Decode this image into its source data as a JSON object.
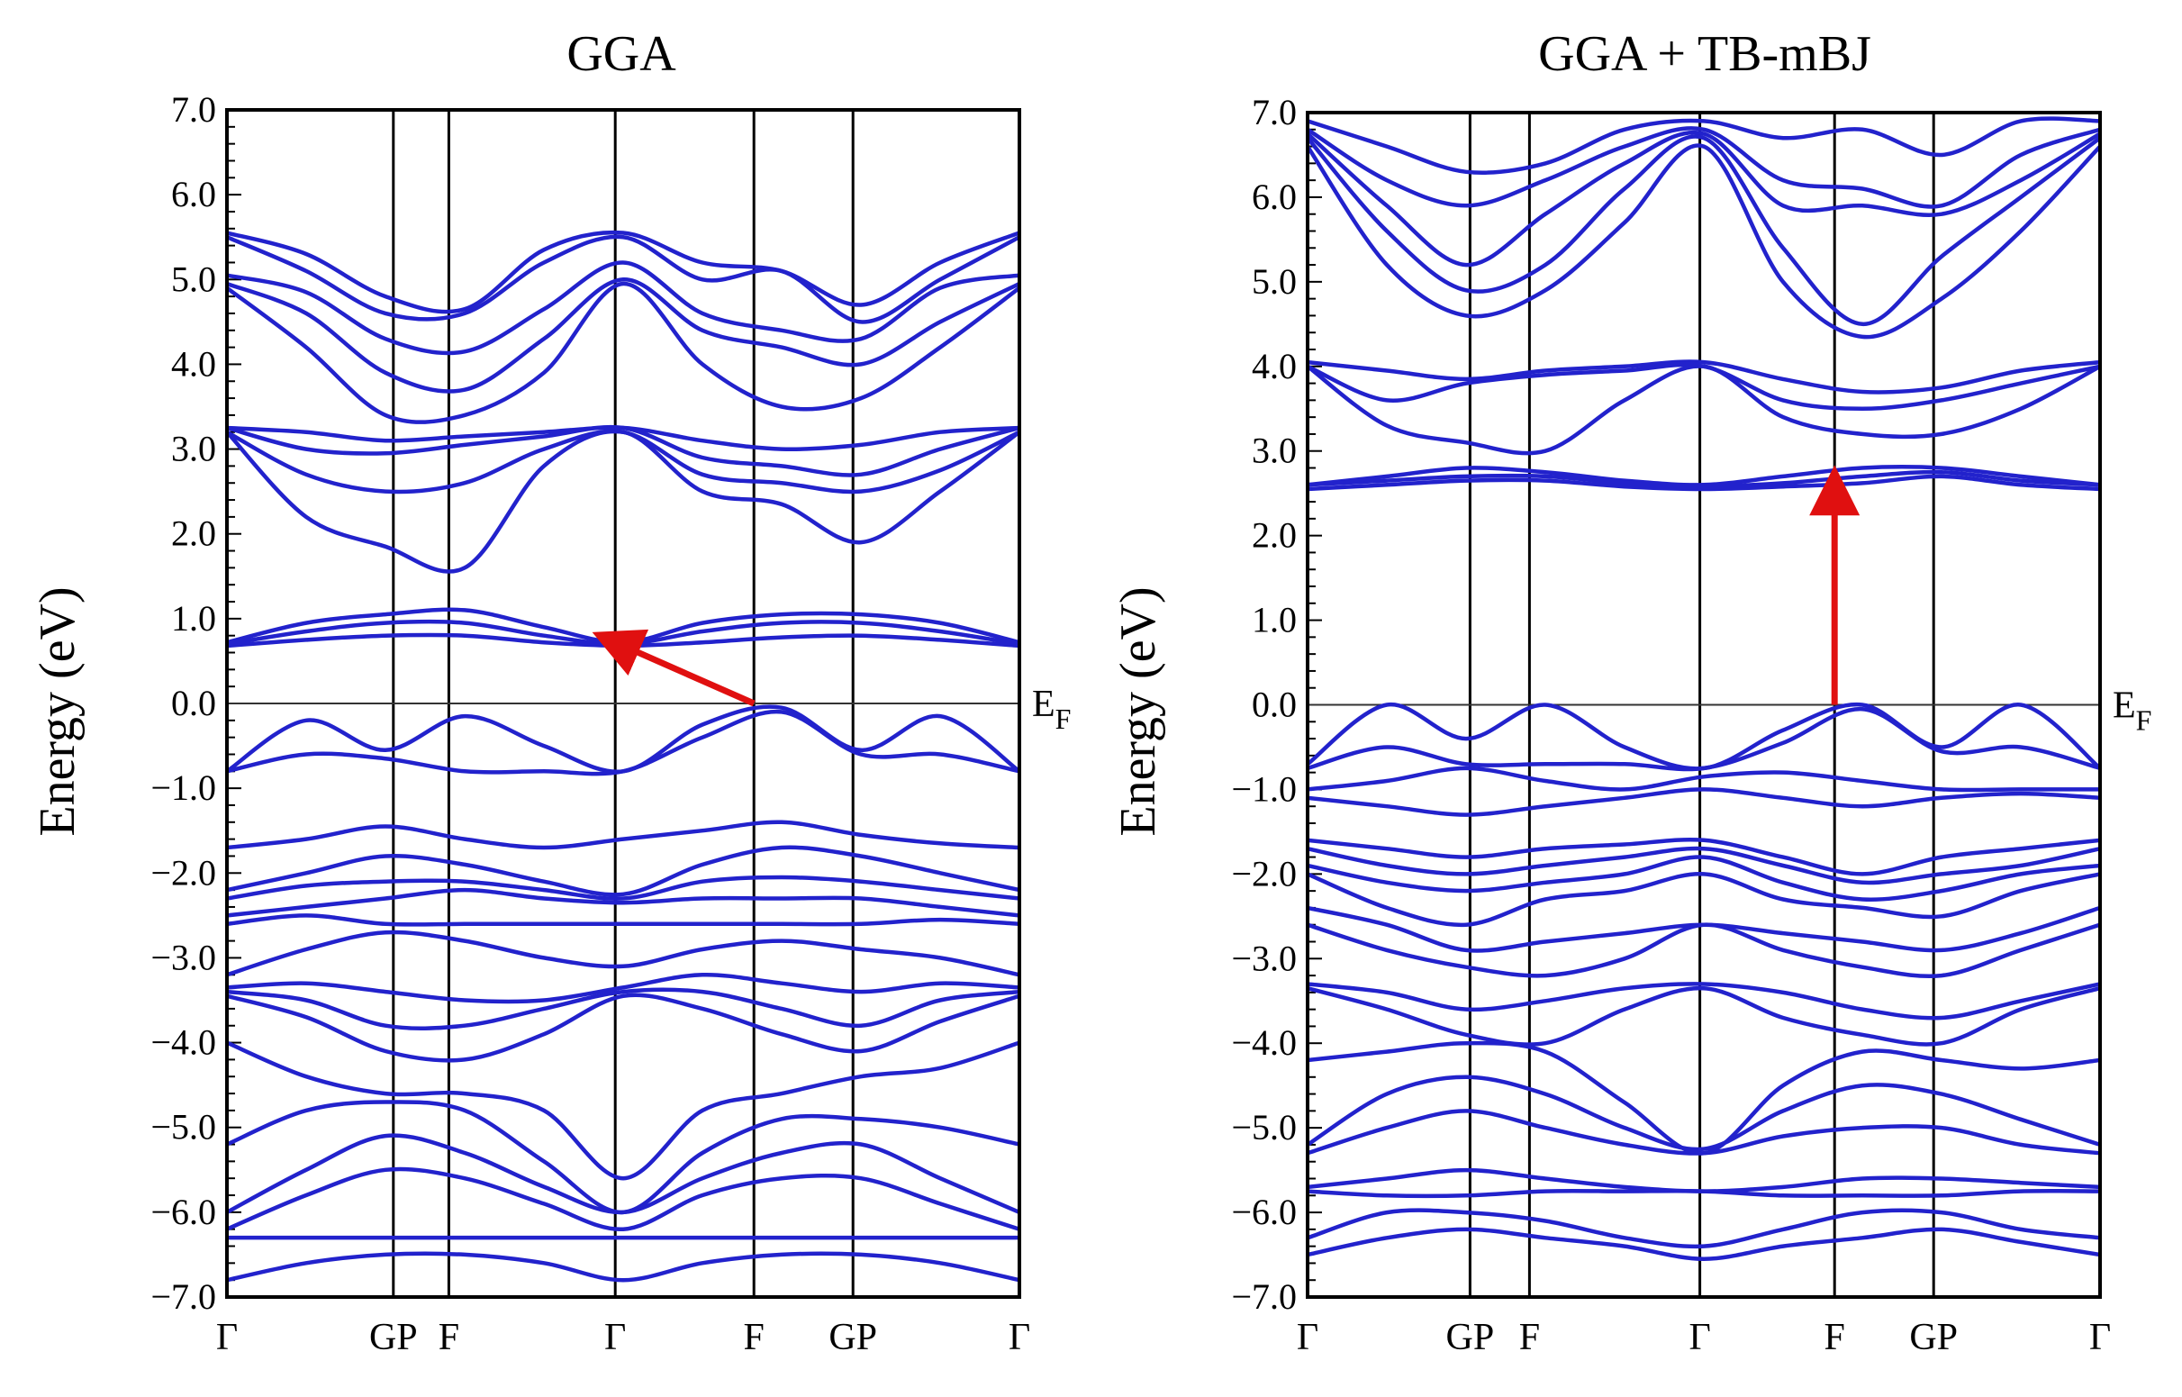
{
  "chart_data": [
    {
      "type": "line",
      "title": "GGA",
      "ylabel": "Energy (eV)",
      "xlabel": "",
      "ylim": [
        -7.0,
        7.0
      ],
      "ytick_labels": [
        "7.0",
        "6.0",
        "5.0",
        "4.0",
        "3.0",
        "2.0",
        "1.0",
        "0.0",
        "−1.0",
        "−2.0",
        "−3.0",
        "−4.0",
        "−5.0",
        "−6.0",
        "−7.0"
      ],
      "ytick_values": [
        7,
        6,
        5,
        4,
        3,
        2,
        1,
        0,
        -1,
        -2,
        -3,
        -4,
        -5,
        -6,
        -7
      ],
      "kpath": [
        {
          "label": "Γ",
          "pos": 0.0
        },
        {
          "label": "GP",
          "pos": 0.21
        },
        {
          "label": "F",
          "pos": 0.28
        },
        {
          "label": "Γ",
          "pos": 0.49
        },
        {
          "label": "F",
          "pos": 0.665
        },
        {
          "label": "GP",
          "pos": 0.79
        },
        {
          "label": "Γ",
          "pos": 1.0
        }
      ],
      "fermi_label_main": "E",
      "fermi_label_sub": "F",
      "fermi_level": 0.0,
      "line_color": "#2222cc",
      "arrow_color": "#e01010",
      "arrow": {
        "from": [
          0.665,
          0.0
        ],
        "to": [
          0.49,
          0.72
        ]
      },
      "series": [
        {
          "name": "band-1",
          "values": [
            5.55,
            5.3,
            4.8,
            4.65,
            5.35,
            5.55,
            5.2,
            5.1,
            4.7,
            5.2,
            5.55
          ]
        },
        {
          "name": "band-2",
          "values": [
            5.5,
            5.1,
            4.6,
            4.6,
            5.2,
            5.5,
            5.0,
            5.1,
            4.5,
            5.0,
            5.5
          ]
        },
        {
          "name": "band-3",
          "values": [
            5.05,
            4.85,
            4.3,
            4.15,
            4.65,
            5.2,
            4.6,
            4.4,
            4.3,
            4.9,
            5.05
          ]
        },
        {
          "name": "band-4",
          "values": [
            4.95,
            4.6,
            3.9,
            3.7,
            4.3,
            5.0,
            4.4,
            4.2,
            4.0,
            4.5,
            4.95
          ]
        },
        {
          "name": "band-5",
          "values": [
            4.9,
            4.2,
            3.4,
            3.4,
            3.9,
            4.95,
            4.0,
            3.5,
            3.6,
            4.2,
            4.9
          ]
        },
        {
          "name": "band-6",
          "values": [
            3.25,
            3.2,
            3.1,
            3.15,
            3.2,
            3.25,
            3.1,
            3.0,
            3.05,
            3.2,
            3.25
          ]
        },
        {
          "name": "band-7",
          "values": [
            3.25,
            3.0,
            2.95,
            3.05,
            3.15,
            3.25,
            2.9,
            2.8,
            2.7,
            3.0,
            3.25
          ]
        },
        {
          "name": "band-8",
          "values": [
            3.2,
            2.7,
            2.5,
            2.6,
            3.0,
            3.2,
            2.7,
            2.6,
            2.5,
            2.75,
            3.2
          ]
        },
        {
          "name": "band-9",
          "values": [
            3.2,
            2.2,
            1.85,
            1.6,
            2.8,
            3.2,
            2.5,
            2.35,
            1.9,
            2.5,
            3.2
          ]
        },
        {
          "name": "band-10",
          "values": [
            0.72,
            0.95,
            1.05,
            1.1,
            0.9,
            0.72,
            0.95,
            1.05,
            1.05,
            0.95,
            0.72
          ]
        },
        {
          "name": "band-11",
          "values": [
            0.7,
            0.85,
            0.95,
            0.95,
            0.8,
            0.7,
            0.85,
            0.95,
            0.95,
            0.85,
            0.7
          ]
        },
        {
          "name": "band-12",
          "values": [
            0.68,
            0.75,
            0.8,
            0.8,
            0.72,
            0.68,
            0.72,
            0.78,
            0.8,
            0.75,
            0.68
          ]
        },
        {
          "name": "band-13",
          "values": [
            -0.8,
            -0.2,
            -0.55,
            -0.15,
            -0.5,
            -0.8,
            -0.25,
            -0.05,
            -0.55,
            -0.15,
            -0.8
          ]
        },
        {
          "name": "band-14",
          "values": [
            -0.8,
            -0.6,
            -0.65,
            -0.8,
            -0.8,
            -0.8,
            -0.4,
            -0.1,
            -0.6,
            -0.6,
            -0.8
          ]
        },
        {
          "name": "band-15",
          "values": [
            -1.7,
            -1.6,
            -1.45,
            -1.6,
            -1.7,
            -1.6,
            -1.5,
            -1.4,
            -1.55,
            -1.65,
            -1.7
          ]
        },
        {
          "name": "band-16",
          "values": [
            -2.2,
            -2.0,
            -1.8,
            -1.9,
            -2.1,
            -2.25,
            -1.9,
            -1.7,
            -1.8,
            -2.0,
            -2.2
          ]
        },
        {
          "name": "band-17",
          "values": [
            -2.3,
            -2.15,
            -2.1,
            -2.1,
            -2.2,
            -2.3,
            -2.1,
            -2.05,
            -2.1,
            -2.2,
            -2.3
          ]
        },
        {
          "name": "band-18",
          "values": [
            -2.5,
            -2.4,
            -2.3,
            -2.2,
            -2.3,
            -2.35,
            -2.3,
            -2.3,
            -2.3,
            -2.4,
            -2.5
          ]
        },
        {
          "name": "band-19",
          "values": [
            -2.6,
            -2.5,
            -2.6,
            -2.6,
            -2.6,
            -2.6,
            -2.6,
            -2.6,
            -2.6,
            -2.55,
            -2.6
          ]
        },
        {
          "name": "band-20",
          "values": [
            -3.2,
            -2.9,
            -2.7,
            -2.8,
            -3.0,
            -3.1,
            -2.9,
            -2.8,
            -2.9,
            -3.0,
            -3.2
          ]
        },
        {
          "name": "band-21",
          "values": [
            -3.35,
            -3.3,
            -3.4,
            -3.5,
            -3.5,
            -3.35,
            -3.2,
            -3.3,
            -3.4,
            -3.3,
            -3.35
          ]
        },
        {
          "name": "band-22",
          "values": [
            -3.4,
            -3.5,
            -3.8,
            -3.8,
            -3.6,
            -3.4,
            -3.4,
            -3.6,
            -3.8,
            -3.5,
            -3.4
          ]
        },
        {
          "name": "band-23",
          "values": [
            -3.45,
            -3.7,
            -4.1,
            -4.2,
            -3.9,
            -3.45,
            -3.6,
            -3.9,
            -4.1,
            -3.75,
            -3.45
          ]
        },
        {
          "name": "band-24",
          "values": [
            -4.0,
            -4.4,
            -4.6,
            -4.6,
            -4.8,
            -5.6,
            -4.8,
            -4.6,
            -4.4,
            -4.3,
            -4.0
          ]
        },
        {
          "name": "band-25",
          "values": [
            -5.2,
            -4.8,
            -4.7,
            -4.8,
            -5.4,
            -6.0,
            -5.3,
            -4.9,
            -4.9,
            -5.0,
            -5.2
          ]
        },
        {
          "name": "band-26",
          "values": [
            -6.0,
            -5.5,
            -5.1,
            -5.3,
            -5.7,
            -6.0,
            -5.6,
            -5.3,
            -5.2,
            -5.6,
            -6.0
          ]
        },
        {
          "name": "band-27",
          "values": [
            -6.2,
            -5.8,
            -5.5,
            -5.6,
            -5.9,
            -6.2,
            -5.8,
            -5.6,
            -5.6,
            -5.9,
            -6.2
          ]
        },
        {
          "name": "band-28",
          "values": [
            -6.3,
            -6.3,
            -6.3,
            -6.3,
            -6.3,
            -6.3,
            -6.3,
            -6.3,
            -6.3,
            -6.3,
            -6.3
          ]
        },
        {
          "name": "band-29",
          "values": [
            -6.8,
            -6.6,
            -6.5,
            -6.5,
            -6.6,
            -6.8,
            -6.6,
            -6.5,
            -6.5,
            -6.6,
            -6.8
          ]
        }
      ]
    },
    {
      "type": "line",
      "title": "GGA + TB-mBJ",
      "ylabel": "Energy (eV)",
      "xlabel": "",
      "ylim": [
        -7.0,
        7.0
      ],
      "ytick_labels": [
        "7.0",
        "6.0",
        "5.0",
        "4.0",
        "3.0",
        "2.0",
        "1.0",
        "0.0",
        "−1.0",
        "−2.0",
        "−3.0",
        "−4.0",
        "−5.0",
        "−6.0",
        "−7.0"
      ],
      "ytick_values": [
        7,
        6,
        5,
        4,
        3,
        2,
        1,
        0,
        -1,
        -2,
        -3,
        -4,
        -5,
        -6,
        -7
      ],
      "kpath": [
        {
          "label": "Γ",
          "pos": 0.0
        },
        {
          "label": "GP",
          "pos": 0.205
        },
        {
          "label": "F",
          "pos": 0.28
        },
        {
          "label": "Γ",
          "pos": 0.495
        },
        {
          "label": "F",
          "pos": 0.665
        },
        {
          "label": "GP",
          "pos": 0.79
        },
        {
          "label": "Γ",
          "pos": 1.0
        }
      ],
      "fermi_label_main": "E",
      "fermi_label_sub": "F",
      "fermi_level": 0.0,
      "line_color": "#2222cc",
      "arrow_color": "#e01010",
      "arrow": {
        "from": [
          0.665,
          0.0
        ],
        "to": [
          0.665,
          2.6
        ]
      },
      "series": [
        {
          "name": "band-1",
          "values": [
            6.9,
            6.6,
            6.3,
            6.4,
            6.8,
            6.9,
            6.7,
            6.8,
            6.5,
            6.9,
            6.9
          ]
        },
        {
          "name": "band-2",
          "values": [
            6.8,
            6.2,
            5.9,
            6.2,
            6.6,
            6.8,
            6.2,
            6.1,
            5.9,
            6.5,
            6.8
          ]
        },
        {
          "name": "band-3",
          "values": [
            6.75,
            5.9,
            5.2,
            5.8,
            6.4,
            6.75,
            5.9,
            5.9,
            5.8,
            6.2,
            6.75
          ]
        },
        {
          "name": "band-4",
          "values": [
            6.7,
            5.6,
            4.9,
            5.2,
            6.1,
            6.7,
            5.4,
            4.5,
            5.3,
            6.0,
            6.7
          ]
        },
        {
          "name": "band-5",
          "values": [
            6.6,
            5.2,
            4.6,
            4.9,
            5.7,
            6.6,
            5.0,
            4.35,
            4.8,
            5.6,
            6.6
          ]
        },
        {
          "name": "band-6",
          "values": [
            4.05,
            3.95,
            3.85,
            3.95,
            4.0,
            4.05,
            3.85,
            3.7,
            3.75,
            3.95,
            4.05
          ]
        },
        {
          "name": "band-7",
          "values": [
            4.0,
            3.6,
            3.8,
            3.9,
            3.95,
            4.0,
            3.6,
            3.5,
            3.6,
            3.8,
            4.0
          ]
        },
        {
          "name": "band-8",
          "values": [
            4.0,
            3.3,
            3.1,
            3.0,
            3.6,
            4.0,
            3.4,
            3.2,
            3.2,
            3.5,
            4.0
          ]
        },
        {
          "name": "band-9",
          "values": [
            2.6,
            2.7,
            2.8,
            2.75,
            2.65,
            2.6,
            2.7,
            2.8,
            2.8,
            2.7,
            2.6
          ]
        },
        {
          "name": "band-10",
          "values": [
            2.6,
            2.65,
            2.7,
            2.7,
            2.62,
            2.58,
            2.62,
            2.7,
            2.75,
            2.65,
            2.6
          ]
        },
        {
          "name": "band-11",
          "values": [
            2.55,
            2.6,
            2.65,
            2.65,
            2.58,
            2.55,
            2.58,
            2.62,
            2.7,
            2.6,
            2.55
          ]
        },
        {
          "name": "band-12",
          "values": [
            -0.7,
            0.0,
            -0.4,
            0.0,
            -0.5,
            -0.75,
            -0.3,
            0.0,
            -0.5,
            0.0,
            -0.75
          ]
        },
        {
          "name": "band-13",
          "values": [
            -0.75,
            -0.5,
            -0.7,
            -0.7,
            -0.7,
            -0.75,
            -0.45,
            -0.05,
            -0.55,
            -0.5,
            -0.75
          ]
        },
        {
          "name": "band-14",
          "values": [
            -1.0,
            -0.9,
            -0.75,
            -0.9,
            -1.0,
            -0.85,
            -0.8,
            -0.9,
            -1.0,
            -1.0,
            -1.0
          ]
        },
        {
          "name": "band-15",
          "values": [
            -1.1,
            -1.2,
            -1.3,
            -1.2,
            -1.1,
            -1.0,
            -1.1,
            -1.2,
            -1.1,
            -1.05,
            -1.1
          ]
        },
        {
          "name": "band-16",
          "values": [
            -1.6,
            -1.7,
            -1.8,
            -1.7,
            -1.65,
            -1.6,
            -1.8,
            -2.0,
            -1.8,
            -1.7,
            -1.6
          ]
        },
        {
          "name": "band-17",
          "values": [
            -1.7,
            -1.9,
            -2.0,
            -1.9,
            -1.8,
            -1.7,
            -1.9,
            -2.1,
            -2.0,
            -1.9,
            -1.7
          ]
        },
        {
          "name": "band-18",
          "values": [
            -1.9,
            -2.1,
            -2.2,
            -2.1,
            -2.0,
            -1.8,
            -2.1,
            -2.3,
            -2.2,
            -2.0,
            -1.9
          ]
        },
        {
          "name": "band-19",
          "values": [
            -2.0,
            -2.4,
            -2.6,
            -2.3,
            -2.2,
            -2.0,
            -2.3,
            -2.4,
            -2.5,
            -2.2,
            -2.0
          ]
        },
        {
          "name": "band-20",
          "values": [
            -2.4,
            -2.6,
            -2.9,
            -2.8,
            -2.7,
            -2.6,
            -2.7,
            -2.8,
            -2.9,
            -2.7,
            -2.4
          ]
        },
        {
          "name": "band-21",
          "values": [
            -2.6,
            -2.9,
            -3.1,
            -3.2,
            -3.0,
            -2.6,
            -2.9,
            -3.1,
            -3.2,
            -2.9,
            -2.6
          ]
        },
        {
          "name": "band-22",
          "values": [
            -3.3,
            -3.4,
            -3.6,
            -3.5,
            -3.35,
            -3.3,
            -3.4,
            -3.6,
            -3.7,
            -3.5,
            -3.3
          ]
        },
        {
          "name": "band-23",
          "values": [
            -3.35,
            -3.6,
            -3.9,
            -4.0,
            -3.6,
            -3.35,
            -3.7,
            -3.9,
            -4.0,
            -3.6,
            -3.35
          ]
        },
        {
          "name": "band-24",
          "values": [
            -4.2,
            -4.1,
            -4.0,
            -4.1,
            -4.7,
            -5.3,
            -4.5,
            -4.1,
            -4.2,
            -4.3,
            -4.2
          ]
        },
        {
          "name": "band-25",
          "values": [
            -5.2,
            -4.6,
            -4.4,
            -4.6,
            -5.0,
            -5.25,
            -4.8,
            -4.5,
            -4.6,
            -4.9,
            -5.2
          ]
        },
        {
          "name": "band-26",
          "values": [
            -5.3,
            -5.0,
            -4.8,
            -5.0,
            -5.2,
            -5.3,
            -5.1,
            -5.0,
            -5.0,
            -5.2,
            -5.3
          ]
        },
        {
          "name": "band-27",
          "values": [
            -5.7,
            -5.6,
            -5.5,
            -5.6,
            -5.7,
            -5.75,
            -5.7,
            -5.6,
            -5.6,
            -5.65,
            -5.7
          ]
        },
        {
          "name": "band-28",
          "values": [
            -5.75,
            -5.8,
            -5.8,
            -5.75,
            -5.75,
            -5.75,
            -5.8,
            -5.8,
            -5.8,
            -5.75,
            -5.75
          ]
        },
        {
          "name": "band-29",
          "values": [
            -6.3,
            -6.0,
            -6.0,
            -6.1,
            -6.3,
            -6.4,
            -6.2,
            -6.0,
            -6.0,
            -6.2,
            -6.3
          ]
        },
        {
          "name": "band-30",
          "values": [
            -6.5,
            -6.3,
            -6.2,
            -6.3,
            -6.4,
            -6.55,
            -6.4,
            -6.3,
            -6.2,
            -6.35,
            -6.5
          ]
        }
      ]
    }
  ]
}
